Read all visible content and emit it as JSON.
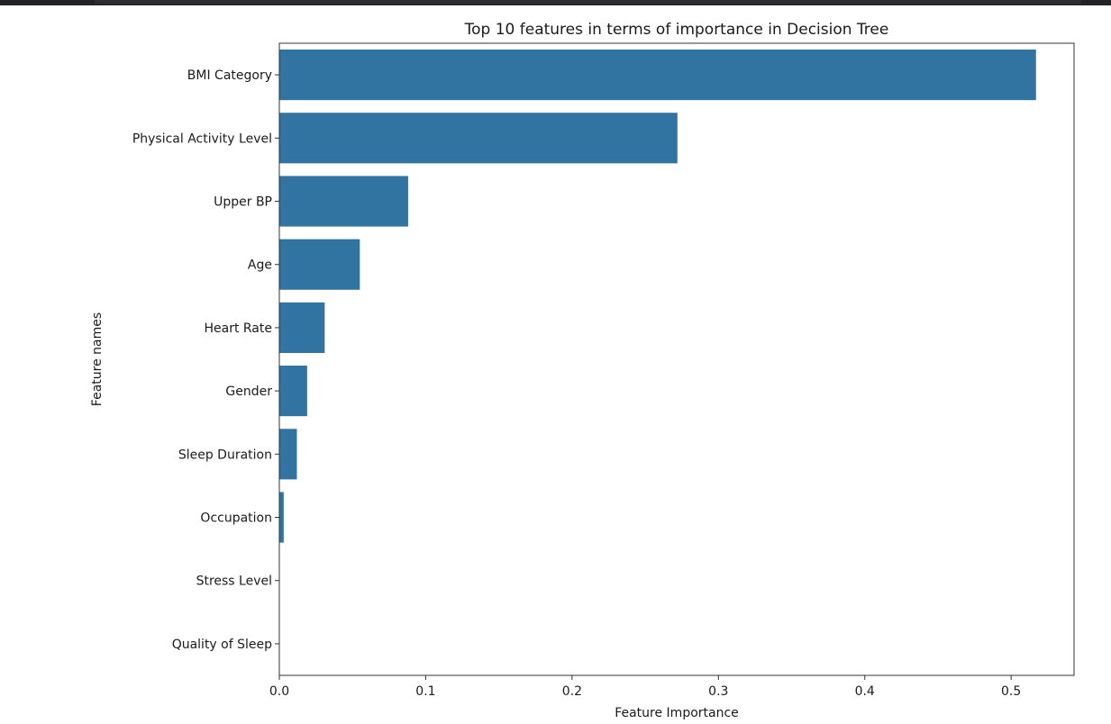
{
  "chart_data": {
    "type": "bar",
    "orientation": "horizontal",
    "title": "Top 10 features in terms of importance in Decision Tree",
    "xlabel": "Feature Importance",
    "ylabel": "Feature names",
    "categories": [
      "BMI Category",
      "Physical Activity Level",
      "Upper BP",
      "Age",
      "Heart Rate",
      "Gender",
      "Sleep Duration",
      "Occupation",
      "Stress Level",
      "Quality of Sleep"
    ],
    "values": [
      0.517,
      0.272,
      0.088,
      0.055,
      0.031,
      0.019,
      0.012,
      0.003,
      0.0,
      0.0
    ],
    "xticks": [
      "0.0",
      "0.1",
      "0.2",
      "0.3",
      "0.4",
      "0.5"
    ],
    "xlim": [
      0,
      0.543
    ],
    "bar_color": "#3274a1",
    "grid": false,
    "legend": "none"
  }
}
